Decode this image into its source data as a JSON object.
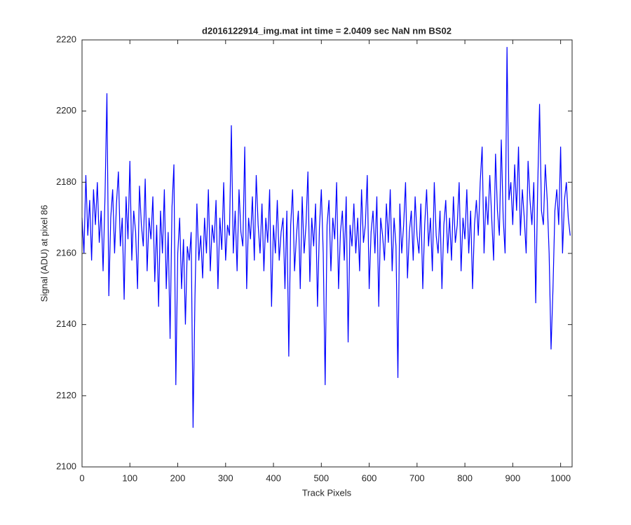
{
  "chart_data": {
    "type": "line",
    "title": "d2016122914_img.mat int time = 2.0409 sec  NaN nm BS02",
    "xlabel": "Track Pixels",
    "ylabel": "Signal (ADU) at pixel 86",
    "xlim": [
      0,
      1024
    ],
    "ylim": [
      2100,
      2220
    ],
    "xticks": [
      0,
      100,
      200,
      300,
      400,
      500,
      600,
      700,
      800,
      900,
      1000
    ],
    "yticks": [
      2100,
      2120,
      2140,
      2160,
      2180,
      2200,
      2220
    ],
    "grid": false,
    "x": [
      0,
      4,
      8,
      12,
      16,
      20,
      24,
      28,
      32,
      36,
      40,
      44,
      48,
      52,
      56,
      60,
      64,
      68,
      72,
      76,
      80,
      84,
      88,
      92,
      96,
      100,
      104,
      108,
      112,
      116,
      120,
      124,
      128,
      132,
      136,
      140,
      144,
      148,
      152,
      156,
      160,
      164,
      168,
      172,
      176,
      180,
      184,
      188,
      192,
      196,
      200,
      204,
      208,
      212,
      216,
      220,
      224,
      228,
      232,
      236,
      240,
      244,
      248,
      252,
      256,
      260,
      264,
      268,
      272,
      276,
      280,
      284,
      288,
      292,
      296,
      300,
      304,
      308,
      312,
      316,
      320,
      324,
      328,
      332,
      336,
      340,
      344,
      348,
      352,
      356,
      360,
      364,
      368,
      372,
      376,
      380,
      384,
      388,
      392,
      396,
      400,
      404,
      408,
      412,
      416,
      420,
      424,
      428,
      432,
      436,
      440,
      444,
      448,
      452,
      456,
      460,
      464,
      468,
      472,
      476,
      480,
      484,
      488,
      492,
      496,
      500,
      504,
      508,
      512,
      516,
      520,
      524,
      528,
      532,
      536,
      540,
      544,
      548,
      552,
      556,
      560,
      564,
      568,
      572,
      576,
      580,
      584,
      588,
      592,
      596,
      600,
      604,
      608,
      612,
      616,
      620,
      624,
      628,
      632,
      636,
      640,
      644,
      648,
      652,
      656,
      660,
      664,
      668,
      672,
      676,
      680,
      684,
      688,
      692,
      696,
      700,
      704,
      708,
      712,
      716,
      720,
      724,
      728,
      732,
      736,
      740,
      744,
      748,
      752,
      756,
      760,
      764,
      768,
      772,
      776,
      780,
      784,
      788,
      792,
      796,
      800,
      804,
      808,
      812,
      816,
      820,
      824,
      828,
      832,
      836,
      840,
      844,
      848,
      852,
      856,
      860,
      864,
      868,
      872,
      876,
      880,
      884,
      888,
      892,
      896,
      900,
      904,
      908,
      912,
      916,
      920,
      924,
      928,
      932,
      936,
      940,
      944,
      948,
      952,
      956,
      960,
      964,
      968,
      972,
      976,
      980,
      984,
      988,
      992,
      996,
      1000,
      1004,
      1008,
      1012,
      1016,
      1020
    ],
    "series": [
      {
        "color": "#0000ff",
        "values": [
          2170,
          2160,
          2182,
          2165,
          2175,
          2158,
          2178,
          2168,
          2180,
          2163,
          2172,
          2155,
          2176,
          2205,
          2148,
          2170,
          2178,
          2160,
          2174,
          2183,
          2162,
          2170,
          2147,
          2176,
          2164,
          2186,
          2158,
          2172,
          2166,
          2150,
          2179,
          2168,
          2162,
          2181,
          2155,
          2170,
          2164,
          2176,
          2152,
          2168,
          2145,
          2172,
          2160,
          2178,
          2150,
          2166,
          2136,
          2173,
          2185,
          2123,
          2160,
          2170,
          2150,
          2164,
          2140,
          2162,
          2158,
          2166,
          2111,
          2148,
          2174,
          2158,
          2165,
          2153,
          2170,
          2160,
          2178,
          2155,
          2168,
          2163,
          2175,
          2150,
          2170,
          2161,
          2180,
          2158,
          2168,
          2165,
          2196,
          2160,
          2172,
          2155,
          2178,
          2166,
          2162,
          2190,
          2150,
          2170,
          2164,
          2176,
          2158,
          2182,
          2168,
          2160,
          2174,
          2155,
          2170,
          2163,
          2178,
          2145,
          2168,
          2160,
          2175,
          2158,
          2166,
          2170,
          2150,
          2172,
          2131,
          2168,
          2178,
          2155,
          2165,
          2172,
          2150,
          2176,
          2160,
          2168,
          2183,
          2152,
          2170,
          2162,
          2174,
          2145,
          2167,
          2178,
          2160,
          2123,
          2168,
          2175,
          2155,
          2170,
          2164,
          2180,
          2150,
          2166,
          2172,
          2158,
          2176,
          2135,
          2168,
          2162,
          2174,
          2160,
          2170,
          2155,
          2178,
          2163,
          2168,
          2182,
          2150,
          2166,
          2172,
          2160,
          2176,
          2145,
          2170,
          2165,
          2158,
          2174,
          2163,
          2178,
          2155,
          2170,
          2162,
          2125,
          2174,
          2160,
          2168,
          2180,
          2153,
          2166,
          2172,
          2158,
          2176,
          2165,
          2160,
          2174,
          2150,
          2168,
          2178,
          2162,
          2170,
          2155,
          2180,
          2165,
          2160,
          2172,
          2150,
          2168,
          2175,
          2160,
          2170,
          2158,
          2176,
          2163,
          2168,
          2180,
          2155,
          2170,
          2164,
          2178,
          2160,
          2172,
          2150,
          2168,
          2175,
          2165,
          2180,
          2190,
          2160,
          2176,
          2168,
          2182,
          2170,
          2158,
          2188,
          2172,
          2165,
          2192,
          2170,
          2160,
          2218,
          2175,
          2180,
          2168,
          2185,
          2172,
          2190,
          2165,
          2178,
          2170,
          2160,
          2186,
          2175,
          2168,
          2180,
          2146,
          2178,
          2202,
          2172,
          2168,
          2185,
          2175,
          2160,
          2133,
          2150,
          2172,
          2178,
          2168,
          2190,
          2160,
          2175,
          2180,
          2170,
          2165
        ]
      }
    ]
  }
}
